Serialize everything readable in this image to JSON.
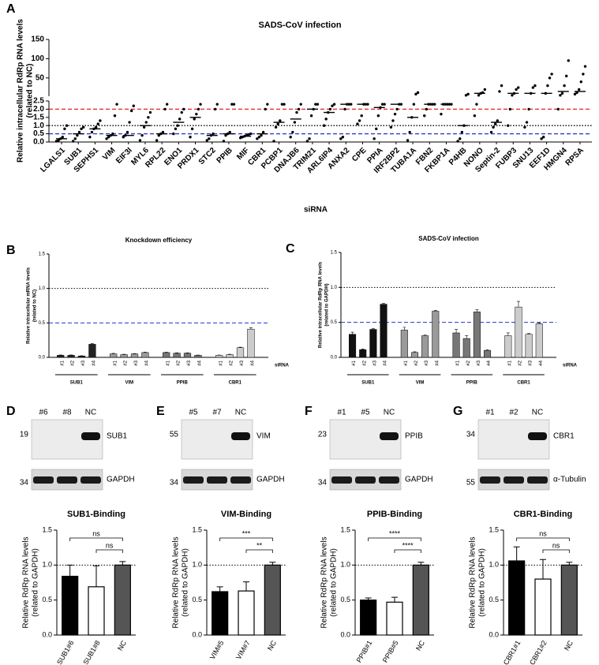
{
  "chart_data": [
    {
      "panel": "A",
      "type": "dot",
      "title": "SADS-CoV infection",
      "ylabel": [
        "Relative intracellular RdRp RNA levels",
        "(related to NC)"
      ],
      "xlabel": "siRNA",
      "categories": [
        "LGALS1",
        "SUB1",
        "SEPHS1",
        "VIM",
        "EIF3I",
        "MYL6",
        "RPL22",
        "ENO1",
        "PRDX1",
        "STC2",
        "PPIB",
        "MIF",
        "CBR1",
        "PCBP1",
        "DNAJB6",
        "TRIM21",
        "ARL6IP4",
        "ANXA2",
        "CPE",
        "PPIA",
        "IRF2BP2",
        "TUBA1A",
        "FBN2",
        "FKBP1A",
        "P4HB",
        "NONO",
        "Septin-2",
        "FUBP3",
        "SNU13",
        "EEF1D",
        "HMGN4",
        "RPSA"
      ],
      "values": [
        [
          0.05,
          0.1,
          0.2,
          0.3,
          0.8,
          1.0
        ],
        [
          0.05,
          0.2,
          0.4,
          0.6,
          0.8,
          0.9
        ],
        [
          0.3,
          0.6,
          0.8,
          0.9,
          1.1,
          1.3
        ],
        [
          0.2,
          0.3,
          0.4,
          0.5,
          1.6,
          2.3
        ],
        [
          0.3,
          0.4,
          0.6,
          1.2,
          1.9,
          2.2
        ],
        [
          0.1,
          0.4,
          0.9,
          1.2,
          1.5,
          1.8
        ],
        [
          0.1,
          0.4,
          0.5,
          0.6,
          2.0,
          2.3
        ],
        [
          0.5,
          0.8,
          1.0,
          1.4,
          1.8,
          2.0
        ],
        [
          0.3,
          0.8,
          1.4,
          1.7,
          2.0,
          2.3
        ],
        [
          0.1,
          0.2,
          0.4,
          0.5,
          2.0,
          2.3
        ],
        [
          0.05,
          0.4,
          0.5,
          0.6,
          2.3,
          2.3
        ],
        [
          0.25,
          0.3,
          0.35,
          0.4,
          0.45,
          0.5
        ],
        [
          0.2,
          0.3,
          0.4,
          0.6,
          2.0,
          2.3
        ],
        [
          0.05,
          0.9,
          1.1,
          1.3,
          2.3,
          2.3
        ],
        [
          0.3,
          0.6,
          1.2,
          1.8,
          2.0,
          2.3
        ],
        [
          0.05,
          0.2,
          1.6,
          2.0,
          2.3,
          2.3
        ],
        [
          1.0,
          1.4,
          1.8,
          2.0,
          2.2,
          2.3
        ],
        [
          0.2,
          0.3,
          2.0,
          2.3,
          2.3,
          2.3
        ],
        [
          1.1,
          1.3,
          1.6,
          2.3,
          2.3,
          2.3
        ],
        [
          0.2,
          0.8,
          1.6,
          2.1,
          2.3,
          2.3
        ],
        [
          0.9,
          1.3,
          1.7,
          2.0,
          2.3,
          2.3
        ],
        [
          0.1,
          0.6,
          1.5,
          2.3,
          8,
          12
        ],
        [
          1.6,
          2.0,
          2.3,
          2.3,
          2.3,
          2.3
        ],
        [
          1.7,
          2.3,
          2.3,
          2.3,
          2.3,
          2.3
        ],
        [
          0.05,
          0.2,
          0.6,
          1.0,
          5,
          8
        ],
        [
          1.6,
          2.3,
          5,
          10,
          12,
          20
        ],
        [
          0.6,
          0.9,
          1.1,
          1.3,
          15,
          30
        ],
        [
          1.0,
          2.0,
          5,
          10,
          20,
          25
        ],
        [
          0.9,
          1.2,
          2.0,
          10,
          25,
          30
        ],
        [
          0.2,
          0.3,
          10,
          30,
          50,
          60
        ],
        [
          2.0,
          5,
          10,
          30,
          55,
          95
        ],
        [
          8,
          12,
          20,
          40,
          60,
          80
        ]
      ],
      "medians": [
        0.2,
        0.5,
        0.8,
        0.4,
        0.4,
        1.0,
        0.5,
        1.2,
        1.5,
        0.4,
        0.5,
        0.35,
        0.5,
        1.2,
        1.4,
        2.0,
        1.8,
        2.3,
        2.3,
        2.1,
        2.3,
        1.5,
        2.3,
        2.3,
        1.0,
        10,
        1.2,
        10,
        10,
        10,
        15,
        15
      ],
      "ylim": [
        0,
        2.5
      ],
      "yticks": [
        {
          "value": 0,
          "label": "0.0"
        },
        0.5,
        {
          "value": 1,
          "label": "1.0"
        },
        1.5,
        {
          "value": 2,
          "label": "2.0"
        },
        2.5
      ],
      "ylim_break": [
        2.5,
        150
      ],
      "yticks_break": [
        50,
        100,
        150
      ],
      "reference_lines": [
        {
          "value": 2,
          "color": "#e02424",
          "style": "dashed"
        },
        {
          "value": 1,
          "color": "#000000",
          "style": "dotted"
        },
        {
          "value": 0.5,
          "color": "#2233cc",
          "style": "dashed"
        }
      ]
    },
    {
      "panel": "B",
      "type": "grouped_bar",
      "title": "Knockdown efficiency",
      "ylabel": [
        "Relative intracellular mRNA levels",
        "(related to NC)"
      ],
      "xlabel": "siRNA",
      "categories": [
        "#1",
        "#2",
        "#3",
        "#4"
      ],
      "series": [
        {
          "name": "SUB1",
          "color": "#222222",
          "values": [
            0.03,
            0.03,
            0.02,
            0.19
          ],
          "errors": [
            0.005,
            0.005,
            0.004,
            0.01
          ]
        },
        {
          "name": "VIM",
          "color": "#9a9a9a",
          "values": [
            0.05,
            0.04,
            0.05,
            0.07
          ],
          "errors": [
            0.008,
            0.005,
            0.005,
            0.005
          ]
        },
        {
          "name": "PPIB",
          "color": "#777777",
          "values": [
            0.07,
            0.06,
            0.06,
            0.03
          ],
          "errors": [
            0.006,
            0.005,
            0.005,
            0.004
          ]
        },
        {
          "name": "CBR1",
          "color": "#cccccc",
          "values": [
            0.03,
            0.04,
            0.14,
            0.41
          ],
          "errors": [
            0.004,
            0.005,
            0.008,
            0.02
          ]
        }
      ],
      "ylim": [
        0,
        1.5
      ],
      "yticks": [
        {
          "value": 0,
          "label": "0.0"
        },
        0.5,
        {
          "value": 1,
          "label": "1.0"
        },
        1.5
      ],
      "reference_lines": [
        {
          "value": 1,
          "color": "#000000",
          "style": "dotted"
        },
        {
          "value": 0.5,
          "color": "#2233cc",
          "style": "dashed"
        }
      ]
    },
    {
      "panel": "C",
      "type": "grouped_bar",
      "title": "SADS-CoV infection",
      "ylabel": [
        "Relative intracellular RdRp RNA levels",
        "(related to GAPDH)"
      ],
      "xlabel": "siRNA",
      "categories": [
        "#1",
        "#2",
        "#3",
        "#4"
      ],
      "series": [
        {
          "name": "SUB1",
          "color": "#111111",
          "values": [
            0.33,
            0.11,
            0.4,
            0.76
          ],
          "errors": [
            0.03,
            0.01,
            0.01,
            0.01
          ]
        },
        {
          "name": "VIM",
          "color": "#9a9a9a",
          "values": [
            0.39,
            0.07,
            0.31,
            0.66
          ],
          "errors": [
            0.04,
            0.01,
            0.01,
            0.01
          ]
        },
        {
          "name": "PPIB",
          "color": "#777777",
          "values": [
            0.35,
            0.27,
            0.65,
            0.1
          ],
          "errors": [
            0.05,
            0.04,
            0.03,
            0.01
          ]
        },
        {
          "name": "CBR1",
          "color": "#cccccc",
          "values": [
            0.31,
            0.72,
            0.33,
            0.48
          ],
          "errors": [
            0.04,
            0.08,
            0.01,
            0.01
          ]
        }
      ],
      "ylim": [
        0,
        1.5
      ],
      "yticks": [
        {
          "value": 0,
          "label": "0.0"
        },
        0.5,
        {
          "value": 1,
          "label": "1.0"
        },
        1.5
      ],
      "reference_lines": [
        {
          "value": 1,
          "color": "#000000",
          "style": "dotted"
        },
        {
          "value": 0.5,
          "color": "#2233cc",
          "style": "dashed"
        }
      ]
    },
    {
      "panel": "D",
      "type": "bar",
      "title": "SUB1-Binding",
      "blot": {
        "lanes": [
          "#6",
          "#8",
          "NC"
        ],
        "target": "SUB1",
        "control": "GAPDH",
        "target_marker": 19,
        "control_marker": 34
      },
      "ylabel": [
        "Relative RdRp RNA levels",
        "(related to GAPDH)"
      ],
      "categories": [
        "SUB1#6",
        "SUB1#8",
        "NC"
      ],
      "values": [
        0.84,
        0.69,
        1.0
      ],
      "errors": [
        0.16,
        0.3,
        0.05
      ],
      "colors": [
        "#000000",
        "#ffffff",
        "#555555"
      ],
      "ylim": [
        0,
        1.5
      ],
      "yticks": [
        {
          "value": 0,
          "label": "0.0"
        },
        0.5,
        {
          "value": 1,
          "label": "1.0"
        },
        1.5
      ],
      "reference_lines": [
        {
          "value": 1,
          "color": "#000000",
          "style": "dotted"
        }
      ],
      "significance": [
        {
          "from": "SUB1#6",
          "to": "NC",
          "label": "ns"
        },
        {
          "from": "SUB1#8",
          "to": "NC",
          "label": "ns"
        }
      ]
    },
    {
      "panel": "E",
      "type": "bar",
      "title": "VIM-Binding",
      "blot": {
        "lanes": [
          "#5",
          "#7",
          "NC"
        ],
        "target": "VIM",
        "control": "GAPDH",
        "target_marker": 55,
        "control_marker": 34
      },
      "ylabel": [
        "Relative RdRp RNA levels",
        "(related to GAPDH)"
      ],
      "categories": [
        "VIM#5",
        "VIM#7",
        "NC"
      ],
      "values": [
        0.62,
        0.63,
        1.0
      ],
      "errors": [
        0.07,
        0.13,
        0.04
      ],
      "colors": [
        "#000000",
        "#ffffff",
        "#555555"
      ],
      "ylim": [
        0,
        1.5
      ],
      "yticks": [
        {
          "value": 0,
          "label": "0.0"
        },
        0.5,
        {
          "value": 1,
          "label": "1.0"
        },
        1.5
      ],
      "reference_lines": [
        {
          "value": 1,
          "color": "#000000",
          "style": "dotted"
        }
      ],
      "significance": [
        {
          "from": "VIM#5",
          "to": "NC",
          "label": "***"
        },
        {
          "from": "VIM#7",
          "to": "NC",
          "label": "**"
        }
      ]
    },
    {
      "panel": "F",
      "type": "bar",
      "title": "PPIB-Binding",
      "blot": {
        "lanes": [
          "#1",
          "#5",
          "NC"
        ],
        "target": "PPIB",
        "control": "GAPDH",
        "target_marker": 23,
        "control_marker": 34
      },
      "ylabel": [
        "Relative RdRp RNA levels",
        "(related to GAPDH)"
      ],
      "categories": [
        "PPIB#1",
        "PPIB#5",
        "NC"
      ],
      "values": [
        0.5,
        0.47,
        1.0
      ],
      "errors": [
        0.03,
        0.07,
        0.04
      ],
      "colors": [
        "#000000",
        "#ffffff",
        "#555555"
      ],
      "ylim": [
        0,
        1.5
      ],
      "yticks": [
        {
          "value": 0,
          "label": "0.0"
        },
        0.5,
        {
          "value": 1,
          "label": "1.0"
        },
        1.5
      ],
      "reference_lines": [
        {
          "value": 1,
          "color": "#000000",
          "style": "dotted"
        }
      ],
      "significance": [
        {
          "from": "PPIB#1",
          "to": "NC",
          "label": "****"
        },
        {
          "from": "PPIB#5",
          "to": "NC",
          "label": "****"
        }
      ]
    },
    {
      "panel": "G",
      "type": "bar",
      "title": "CBR1-Binding",
      "blot": {
        "lanes": [
          "#1",
          "#2",
          "NC"
        ],
        "target": "CBR1",
        "control": "α-Tubulin",
        "target_marker": 34,
        "control_marker": 55
      },
      "ylabel": [
        "Relative RdRp RNA levels",
        "(related to GAPDH)"
      ],
      "categories": [
        "CBR1#1",
        "CBR1#2",
        "NC"
      ],
      "values": [
        1.06,
        0.8,
        1.0
      ],
      "errors": [
        0.2,
        0.28,
        0.04
      ],
      "colors": [
        "#000000",
        "#ffffff",
        "#555555"
      ],
      "ylim": [
        0,
        1.5
      ],
      "yticks": [
        {
          "value": 0,
          "label": "0.0"
        },
        0.5,
        {
          "value": 1,
          "label": "1.0"
        },
        1.5
      ],
      "reference_lines": [
        {
          "value": 1,
          "color": "#000000",
          "style": "dotted"
        }
      ],
      "significance": [
        {
          "from": "CBR1#1",
          "to": "NC",
          "label": "ns"
        },
        {
          "from": "CBR1#2",
          "to": "NC",
          "label": "ns"
        }
      ]
    }
  ]
}
